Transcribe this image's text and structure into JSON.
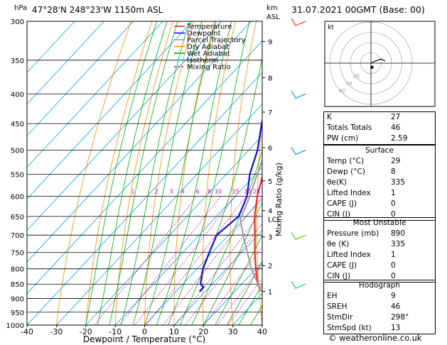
{
  "header": {
    "pressure_unit": "hPa",
    "location": "47°28'N  248°23'W  1150m  ASL",
    "km_unit": "km",
    "km_asl": "ASL",
    "datestamp": "31.07.2021  00GMT  (Base: 00)",
    "hodo_unit": "kt",
    "credit": "© weatheronline.co.uk"
  },
  "chart_data": {
    "type": "line",
    "title": "",
    "xlabel": "Dewpoint / Temperature (°C)",
    "ylabel": "hPa",
    "x_ticks": [
      -40,
      -30,
      -20,
      -10,
      0,
      10,
      20,
      30,
      40
    ],
    "pressure_levels": [
      300,
      350,
      400,
      450,
      500,
      550,
      600,
      650,
      700,
      750,
      800,
      850,
      900,
      950,
      1000
    ],
    "ylim": [
      1000,
      300
    ],
    "xlim": [
      -40,
      40
    ],
    "km_ticks": [
      {
        "label": "1",
        "p": 875
      },
      {
        "label": "2",
        "p": 790
      },
      {
        "label": "3",
        "p": 705
      },
      {
        "label": "4",
        "p": 635
      },
      {
        "label": "5",
        "p": 565
      },
      {
        "label": "6",
        "p": 495
      },
      {
        "label": "7",
        "p": 430
      },
      {
        "label": "8",
        "p": 375
      },
      {
        "label": "9",
        "p": 325
      }
    ],
    "lcl_label": "LCL",
    "lcl_p": 657,
    "right_axis_label": "Mixing Ratio (g/kg)",
    "mixing_ratio_labels": [
      {
        "label": "1",
        "t": -4
      },
      {
        "label": "2",
        "t": 4
      },
      {
        "label": "3",
        "t": 9
      },
      {
        "label": "4",
        "t": 13
      },
      {
        "label": "6",
        "t": 18
      },
      {
        "label": "8",
        "t": 22
      },
      {
        "label": "10",
        "t": 25
      },
      {
        "label": "15",
        "t": 31
      },
      {
        "label": "20",
        "t": 35
      },
      {
        "label": "25",
        "t": 38
      }
    ],
    "legend": [
      {
        "name": "Temperature",
        "color": "#ff2020",
        "dash": ""
      },
      {
        "name": "Dewpoint",
        "color": "#1010dd",
        "dash": ""
      },
      {
        "name": "Parcel Trajectory",
        "color": "#999999",
        "dash": ""
      },
      {
        "name": "Dry Adiabat",
        "color": "#ff8800",
        "dash": ""
      },
      {
        "name": "Wet Adiabat",
        "color": "#00aa00",
        "dash": ""
      },
      {
        "name": "Isotherm",
        "color": "#00a0e8",
        "dash": ""
      },
      {
        "name": "Mixing Ratio",
        "color": "#cc00cc",
        "dash": "3,2"
      }
    ],
    "series": [
      {
        "name": "Temperature",
        "color": "#ff2020",
        "points": [
          [
            875,
            29
          ],
          [
            850,
            25.5
          ],
          [
            800,
            20
          ],
          [
            750,
            14.5
          ],
          [
            700,
            9
          ],
          [
            650,
            3
          ],
          [
            600,
            -2.5
          ],
          [
            550,
            -7.5
          ],
          [
            500,
            -12.5
          ],
          [
            450,
            -17.5
          ],
          [
            400,
            -23
          ],
          [
            370,
            -27
          ],
          [
            350,
            -30.5
          ],
          [
            300,
            -39
          ]
        ]
      },
      {
        "name": "Dewpoint",
        "color": "#1010dd",
        "points": [
          [
            875,
            8
          ],
          [
            860,
            8
          ],
          [
            850,
            6
          ],
          [
            800,
            2
          ],
          [
            750,
            -1
          ],
          [
            700,
            -4
          ],
          [
            650,
            -2.5
          ],
          [
            620,
            -4.5
          ],
          [
            600,
            -6
          ],
          [
            550,
            -12
          ],
          [
            500,
            -17
          ],
          [
            450,
            -24
          ],
          [
            400,
            -31
          ],
          [
            385,
            -31
          ],
          [
            370,
            -28
          ],
          [
            350,
            -33
          ],
          [
            340,
            -30
          ],
          [
            320,
            -38
          ],
          [
            300,
            -43
          ]
        ]
      },
      {
        "name": "Parcel Trajectory",
        "color": "#999999",
        "points": [
          [
            875,
            29
          ],
          [
            800,
            18.5
          ],
          [
            700,
            5
          ],
          [
            657,
            -1
          ],
          [
            600,
            -5
          ],
          [
            550,
            -9.5
          ],
          [
            500,
            -14
          ],
          [
            450,
            -20
          ],
          [
            400,
            -26
          ],
          [
            350,
            -33
          ],
          [
            300,
            -41
          ]
        ]
      }
    ],
    "wind_barbs": [
      {
        "p": 300,
        "color": "#ff2020"
      },
      {
        "p": 400,
        "color": "#00a0e8"
      },
      {
        "p": 500,
        "color": "#00a0e8"
      },
      {
        "p": 700,
        "color": "#66cc00"
      },
      {
        "p": 850,
        "color": "#00cccc"
      }
    ]
  },
  "hodograph": {
    "unit": "kt",
    "ring_labels": [
      "20",
      "30",
      "40"
    ],
    "trace": [
      [
        0,
        0
      ],
      [
        4,
        2
      ],
      [
        10,
        4
      ],
      [
        14,
        2
      ]
    ],
    "storm_motion": [
      1,
      -4
    ],
    "color": "#000000"
  },
  "indices": [
    {
      "label": "K",
      "value": "27"
    },
    {
      "label": "Totals Totals",
      "value": "46"
    },
    {
      "label": "PW (cm)",
      "value": "2.59"
    }
  ],
  "surface": {
    "title": "Surface",
    "rows": [
      {
        "label": "Temp (°C)",
        "value": "29"
      },
      {
        "label": "Dewp (°C)",
        "value": "8"
      },
      {
        "label": "θe(K)",
        "value": "335"
      },
      {
        "label": "Lifted Index",
        "value": "1"
      },
      {
        "label": "CAPE (J)",
        "value": "0"
      },
      {
        "label": "CIN (J)",
        "value": "0"
      }
    ]
  },
  "most_unstable": {
    "title": "Most Unstable",
    "rows": [
      {
        "label": "Pressure (mb)",
        "value": "890"
      },
      {
        "label": "θe (K)",
        "value": "335"
      },
      {
        "label": "Lifted Index",
        "value": "1"
      },
      {
        "label": "CAPE (J)",
        "value": "0"
      },
      {
        "label": "CIN (J)",
        "value": "0"
      }
    ]
  },
  "hodograph_table": {
    "title": "Hodograph",
    "rows": [
      {
        "label": "EH",
        "value": "9"
      },
      {
        "label": "SREH",
        "value": "46"
      },
      {
        "label": "StmDir",
        "value": "298°"
      },
      {
        "label": "StmSpd (kt)",
        "value": "13"
      }
    ]
  }
}
